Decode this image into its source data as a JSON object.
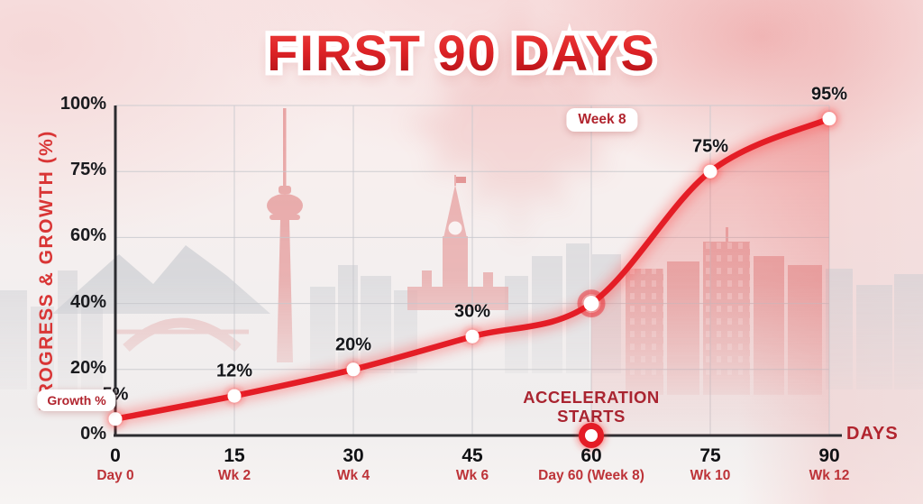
{
  "title": "FIRST 90 DAYS",
  "labels": {
    "growth_badge": "Growth %",
    "week8_badge": "Week 8",
    "acceleration": "ACCELERATION STARTS",
    "days_axis": "DAYS"
  },
  "colors": {
    "line": "#e41d26",
    "area": "#eb6a6a",
    "accent_dark": "#a92430",
    "tick_text": "#1a1b1f",
    "sublabel_red": "#bd3338",
    "title_red": "#c81a1e"
  },
  "chart_data": {
    "type": "line",
    "title": "FIRST 90 DAYS",
    "xlabel": "DAYS",
    "ylabel": "PROGRESS & GROWTH (%)",
    "series_name": "Growth %",
    "x": [
      0,
      15,
      30,
      45,
      60,
      75,
      90
    ],
    "values": [
      5,
      12,
      20,
      30,
      40,
      75,
      95
    ],
    "point_labels": [
      "5%",
      "12%",
      "20%",
      "30%",
      "",
      "75%",
      "95%"
    ],
    "xlim": [
      0,
      90
    ],
    "xtick_labels": [
      "0",
      "15",
      "30",
      "45",
      "60",
      "75",
      "90"
    ],
    "xtick_sublabels": [
      "Day 0",
      "Wk 2",
      "Wk 4",
      "Wk 6",
      "Day 60 (Week 8)",
      "Wk 10",
      "Wk 12"
    ],
    "ytick_values": [
      0,
      20,
      40,
      60,
      75,
      100
    ],
    "ytick_labels": [
      "0%",
      "20%",
      "40%",
      "60%",
      "75%",
      "100%"
    ],
    "grid": true,
    "legend_position": "none",
    "highlight_x": 60,
    "area_fill_from_x": 60,
    "annotations": [
      {
        "text": "Week 8",
        "x": 60,
        "style": "badge-top"
      },
      {
        "text": "ACCELERATION STARTS",
        "x": 60,
        "style": "emphasis-bottom"
      },
      {
        "text": "Growth %",
        "x": 0,
        "style": "badge-left"
      }
    ]
  }
}
